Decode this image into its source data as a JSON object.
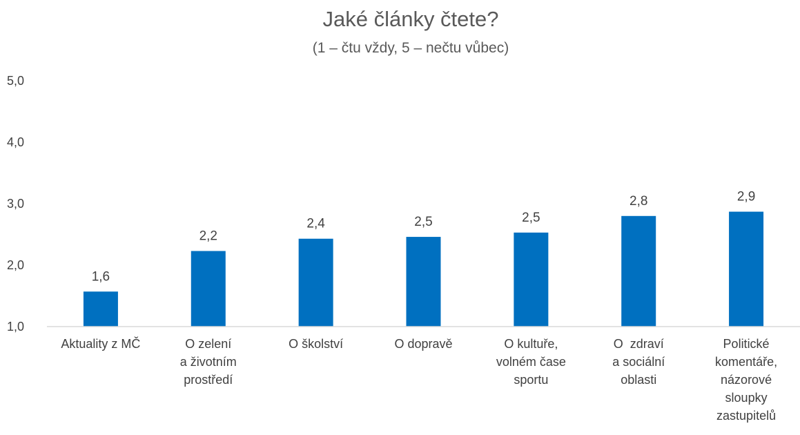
{
  "chart_data": {
    "type": "bar",
    "title": "Jaké články čtete?",
    "subtitle": "(1 – čtu vždy, 5 – nečtu vůbec)",
    "categories": [
      [
        "Aktuality z MČ"
      ],
      [
        "O zelení",
        "a životním",
        "prostředí"
      ],
      [
        "O školství"
      ],
      [
        "O dopravě"
      ],
      [
        "O kultuře,",
        "volném čase",
        "sportu"
      ],
      [
        "O  zdraví",
        "a sociální",
        "oblasti"
      ],
      [
        "Politické",
        "komentáře,",
        "názorové",
        "sloupky",
        "zastupitelů"
      ]
    ],
    "values": [
      1.57,
      2.23,
      2.43,
      2.46,
      2.53,
      2.8,
      2.87
    ],
    "data_labels": [
      "1,6",
      "2,2",
      "2,4",
      "2,5",
      "2,5",
      "2,8",
      "2,9"
    ],
    "yticks": [
      "1,0",
      "2,0",
      "3,0",
      "4,0",
      "5,0"
    ],
    "ylim": [
      1,
      5
    ],
    "bar_color": "#0070C0",
    "grid": false,
    "legend": "none"
  }
}
